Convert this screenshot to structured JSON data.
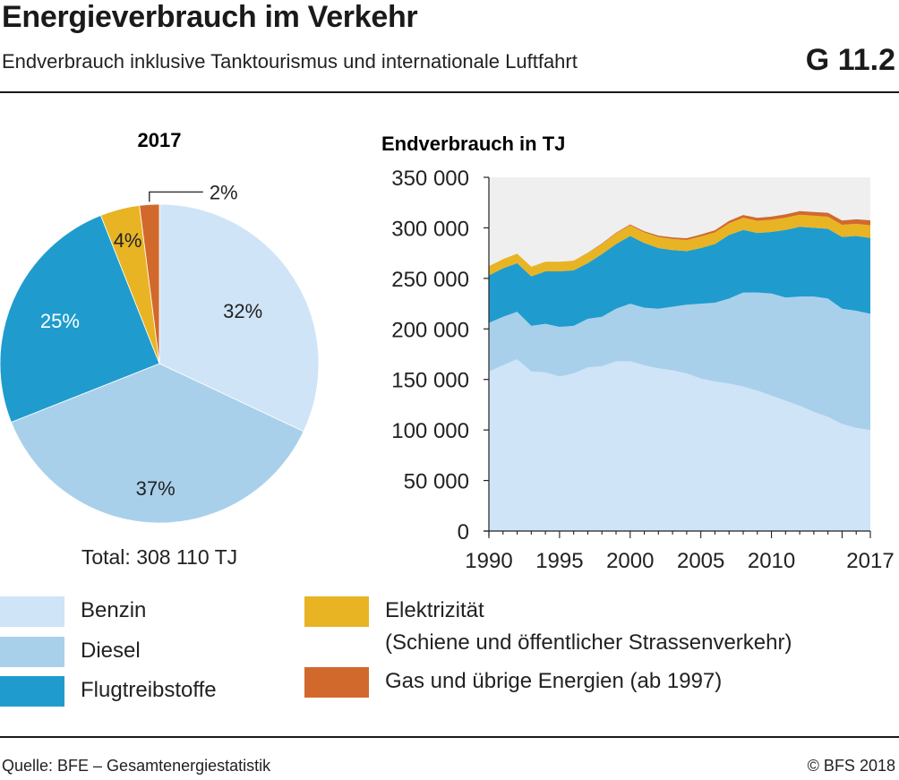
{
  "header": {
    "title": "Energieverbrauch im Verkehr",
    "subtitle": "Endverbrauch inklusive Tanktourismus und internationale Luftfahrt",
    "figure_number": "G 11.2"
  },
  "footer": {
    "source": "Quelle: BFE – Gesamtenergiestatistik",
    "copyright": "© BFS 2018"
  },
  "colors": {
    "benzin": "#cfe4f7",
    "diesel": "#a9d0eb",
    "flug": "#1f9ccd",
    "elektro": "#e8b424",
    "gas": "#d2692c",
    "plot_bg": "#efefef"
  },
  "legend": [
    {
      "label": "Benzin",
      "color_key": "benzin"
    },
    {
      "label": "Diesel",
      "color_key": "diesel"
    },
    {
      "label": "Flugtreibstoffe",
      "color_key": "flug"
    },
    {
      "label": "Elektrizität",
      "label2": "(Schiene und öffentlicher Strassenverkehr)",
      "color_key": "elektro"
    },
    {
      "label": "Gas und übrige Energien (ab 1997)",
      "color_key": "gas"
    }
  ],
  "chart_data": [
    {
      "type": "pie",
      "title": "2017",
      "total_label": "Total: 308 110 TJ",
      "categories": [
        "Benzin",
        "Diesel",
        "Flugtreibstoffe",
        "Elektrizität",
        "Gas und übrige Energien"
      ],
      "values": [
        32,
        37,
        25,
        4,
        2
      ],
      "labels": [
        "32%",
        "37%",
        "25%",
        "4%",
        "2%"
      ],
      "colors": [
        "#cfe4f7",
        "#a9d0eb",
        "#1f9ccd",
        "#e8b424",
        "#d2692c"
      ]
    },
    {
      "type": "area",
      "stacked": true,
      "title": "Endverbrauch in TJ",
      "xlim": [
        1990,
        2017
      ],
      "ylim": [
        0,
        350000
      ],
      "x_ticks": [
        1990,
        1995,
        2000,
        2005,
        2010,
        2017
      ],
      "x_tick_labels": [
        "1990",
        "1995",
        "2000",
        "2005",
        "2010",
        "2017"
      ],
      "y_ticks": [
        0,
        50000,
        100000,
        150000,
        200000,
        250000,
        300000,
        350000
      ],
      "y_tick_labels": [
        "0",
        "50 000",
        "100 000",
        "150 000",
        "200 000",
        "250 000",
        "300 000",
        "350 000"
      ],
      "grid": false,
      "x": [
        1990,
        1991,
        1992,
        1993,
        1994,
        1995,
        1996,
        1997,
        1998,
        1999,
        2000,
        2001,
        2002,
        2003,
        2004,
        2005,
        2006,
        2007,
        2008,
        2009,
        2010,
        2011,
        2012,
        2013,
        2014,
        2015,
        2016,
        2017
      ],
      "series": [
        {
          "name": "Benzin",
          "color": "#cfe4f7",
          "values": [
            158000,
            164000,
            170000,
            158000,
            157000,
            153000,
            156000,
            162000,
            163000,
            168000,
            168000,
            164000,
            161000,
            159000,
            156000,
            151000,
            148000,
            146000,
            143000,
            139000,
            134000,
            129000,
            124000,
            118000,
            113000,
            106000,
            102000,
            100000
          ]
        },
        {
          "name": "Diesel",
          "color": "#a9d0eb",
          "values": [
            48000,
            48000,
            47000,
            45000,
            48000,
            49000,
            47000,
            48000,
            49000,
            52000,
            57000,
            57000,
            59000,
            63000,
            68000,
            74000,
            78000,
            84000,
            93000,
            97000,
            101000,
            102000,
            108000,
            114000,
            117000,
            114000,
            116000,
            115000
          ]
        },
        {
          "name": "Flugtreibstoffe",
          "color": "#1f9ccd",
          "values": [
            47000,
            48000,
            48000,
            49000,
            52000,
            55000,
            55000,
            55000,
            62000,
            64000,
            67000,
            64000,
            60000,
            56000,
            53000,
            55000,
            58000,
            63000,
            62000,
            59000,
            61000,
            67000,
            69000,
            68000,
            69000,
            71000,
            74000,
            75000
          ]
        },
        {
          "name": "Elektrizität",
          "color": "#e8b424",
          "values": [
            9000,
            9000,
            9500,
            9500,
            9500,
            9500,
            9500,
            10000,
            10000,
            10500,
            10500,
            10500,
            11000,
            11000,
            11000,
            11500,
            11500,
            11500,
            12000,
            12000,
            12000,
            12000,
            12000,
            12000,
            12000,
            12000,
            12000,
            12500
          ]
        },
        {
          "name": "Gas und übrige Energien",
          "color": "#d2692c",
          "values": [
            0,
            0,
            0,
            0,
            0,
            0,
            0,
            300,
            500,
            700,
            900,
            1100,
            1300,
            1500,
            1700,
            1900,
            2100,
            2400,
            2700,
            2900,
            3100,
            3300,
            3500,
            3700,
            3900,
            4200,
            4500,
            5000
          ]
        }
      ]
    }
  ]
}
